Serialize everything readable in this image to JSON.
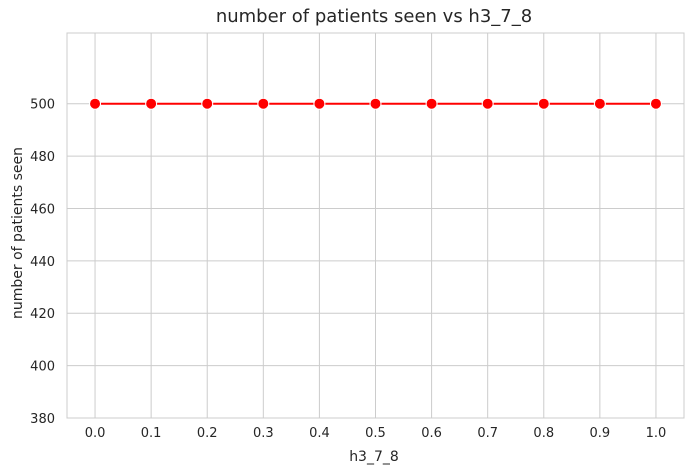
{
  "chart_data": {
    "type": "line",
    "title": "number of patients seen vs h3_7_8",
    "xlabel": "h3_7_8",
    "ylabel": "number of patients seen",
    "x": [
      0.0,
      0.1,
      0.2,
      0.3,
      0.4,
      0.5,
      0.6,
      0.7,
      0.8,
      0.9,
      1.0
    ],
    "x_tick_labels": [
      "0.0",
      "0.1",
      "0.2",
      "0.3",
      "0.4",
      "0.5",
      "0.6",
      "0.7",
      "0.8",
      "0.9",
      "1.0"
    ],
    "y_ticks": [
      380,
      400,
      420,
      440,
      460,
      480,
      500
    ],
    "y_tick_labels": [
      "380",
      "400",
      "420",
      "440",
      "460",
      "480",
      "500"
    ],
    "series": [
      {
        "values": [
          500,
          500,
          500,
          500,
          500,
          500,
          500,
          500,
          500,
          500,
          500
        ],
        "color": "#ff0000"
      }
    ],
    "xlim": [
      -0.05,
      1.05
    ],
    "ylim": [
      380,
      527
    ],
    "grid": true,
    "marker": "circle",
    "marker_edge_color": "#ffffff"
  }
}
